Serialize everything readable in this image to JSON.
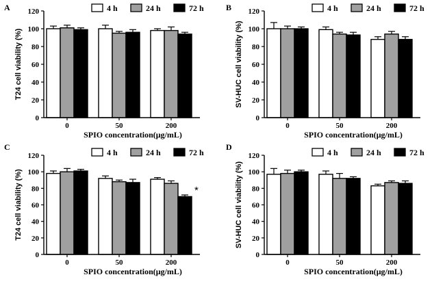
{
  "figure": {
    "colors": {
      "4 h": "#ffffff",
      "24 h": "#a0a0a0",
      "72 h": "#000000",
      "axis": "#000000"
    }
  },
  "chart_data": [
    {
      "panel": "A",
      "type": "bar",
      "title": "",
      "xlabel": "SPIO concentration(μg/mL)",
      "ylabel": "T24 cell viability (%)",
      "ylim": [
        0,
        120
      ],
      "yticks": [
        0,
        20,
        40,
        60,
        80,
        100,
        120
      ],
      "categories": [
        "0",
        "50",
        "200"
      ],
      "series": [
        {
          "name": "4 h",
          "values": [
            100,
            100,
            98
          ],
          "errors": [
            3,
            4,
            2
          ]
        },
        {
          "name": "24 h",
          "values": [
            101,
            95,
            98
          ],
          "errors": [
            3,
            2,
            4
          ]
        },
        {
          "name": "72 h",
          "values": [
            99,
            96,
            94
          ],
          "errors": [
            2,
            3,
            2
          ]
        }
      ],
      "annotations": [],
      "legend": "top-right"
    },
    {
      "panel": "B",
      "type": "bar",
      "title": "",
      "xlabel": "SPIO concentration(μg/mL)",
      "ylabel": "SV-HUC cell viability (%)",
      "ylim": [
        0,
        120
      ],
      "yticks": [
        0,
        20,
        40,
        60,
        80,
        100,
        120
      ],
      "categories": [
        "0",
        "50",
        "200"
      ],
      "series": [
        {
          "name": "4 h",
          "values": [
            100,
            99,
            88
          ],
          "errors": [
            7,
            3,
            3
          ]
        },
        {
          "name": "24 h",
          "values": [
            100,
            94,
            94
          ],
          "errors": [
            3,
            2,
            3
          ]
        },
        {
          "name": "72 h",
          "values": [
            100,
            93,
            88
          ],
          "errors": [
            2,
            3,
            3
          ]
        }
      ],
      "annotations": [],
      "legend": "top-right"
    },
    {
      "panel": "C",
      "type": "bar",
      "title": "",
      "xlabel": "SPIO concentration(μg/mL)",
      "ylabel": "T24 cell viability (%)",
      "ylim": [
        0,
        120
      ],
      "yticks": [
        0,
        20,
        40,
        60,
        80,
        100,
        120
      ],
      "categories": [
        "0",
        "50",
        "200"
      ],
      "series": [
        {
          "name": "4 h",
          "values": [
            98,
            92,
            91
          ],
          "errors": [
            3,
            3,
            2
          ]
        },
        {
          "name": "24 h",
          "values": [
            100,
            88,
            86
          ],
          "errors": [
            4,
            2,
            3
          ]
        },
        {
          "name": "72 h",
          "values": [
            101,
            87,
            70
          ],
          "errors": [
            2,
            4,
            2
          ]
        }
      ],
      "annotations": [
        {
          "text": "*",
          "category": "200",
          "series": "72 h"
        }
      ],
      "legend": "top-right"
    },
    {
      "panel": "D",
      "type": "bar",
      "title": "",
      "xlabel": "SPIO concentration(μg/mL)",
      "ylabel": "SV-HUC cell viability (%)",
      "ylim": [
        0,
        120
      ],
      "yticks": [
        0,
        20,
        40,
        60,
        80,
        100,
        120
      ],
      "categories": [
        "0",
        "50",
        "200"
      ],
      "series": [
        {
          "name": "4 h",
          "values": [
            97,
            97,
            83
          ],
          "errors": [
            7,
            4,
            2
          ]
        },
        {
          "name": "24 h",
          "values": [
            98,
            92,
            87
          ],
          "errors": [
            4,
            6,
            2
          ]
        },
        {
          "name": "72 h",
          "values": [
            100,
            92,
            86
          ],
          "errors": [
            2,
            2,
            3
          ]
        }
      ],
      "annotations": [],
      "legend": "top-right"
    }
  ]
}
